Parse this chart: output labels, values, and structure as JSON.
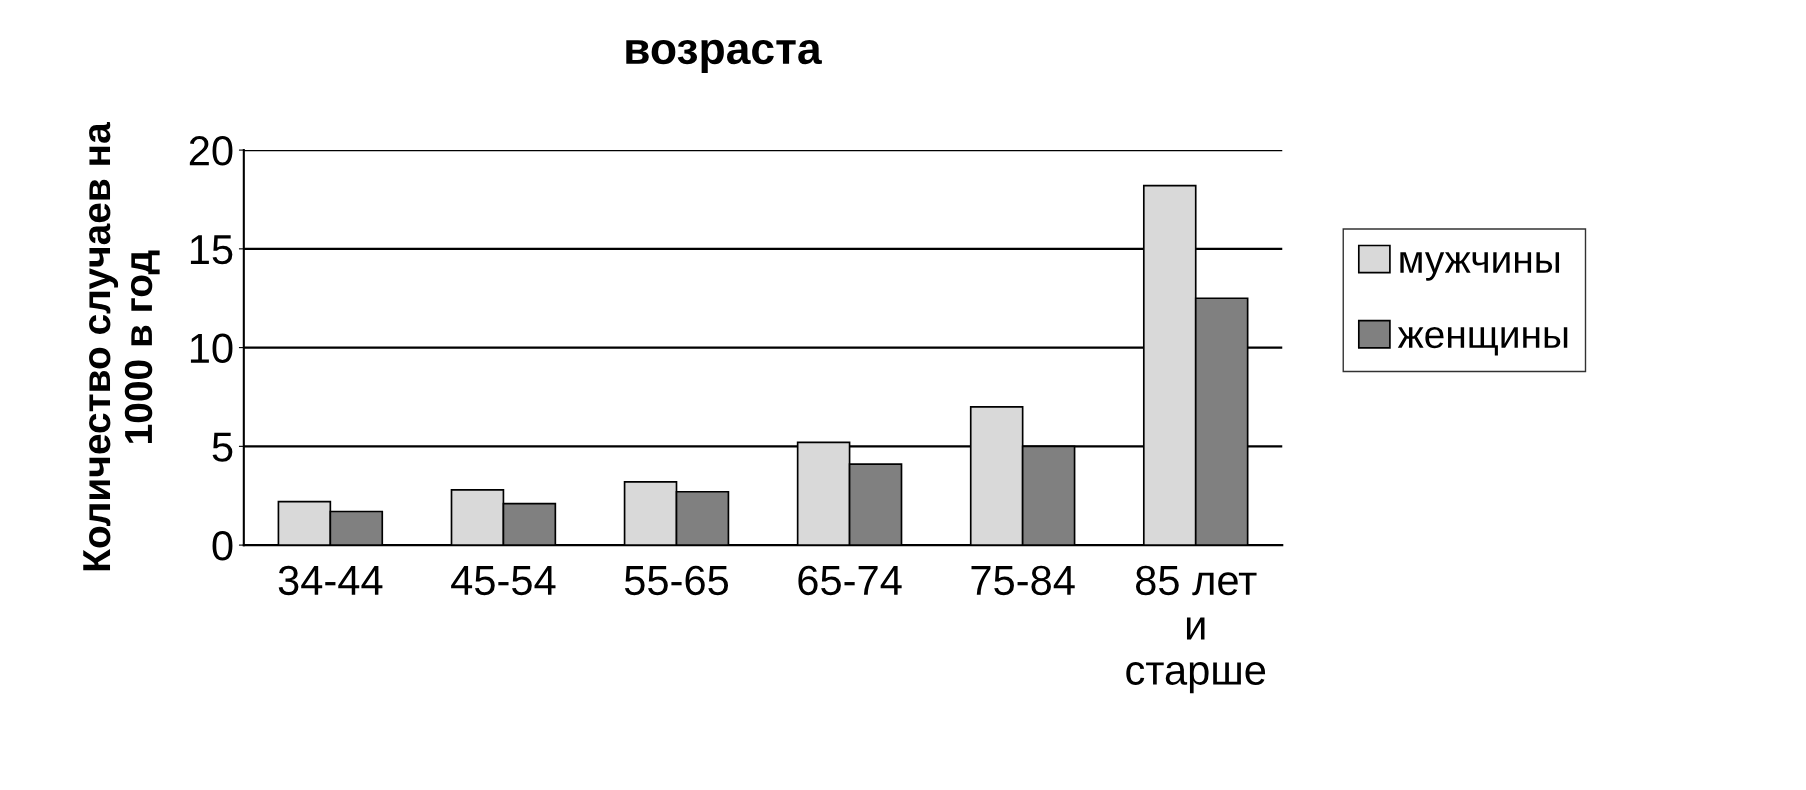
{
  "chart_data": {
    "type": "bar",
    "title": "возраста",
    "ylabel": "Количество случаев на\n1000 в год",
    "categories": [
      "34-44",
      "45-54",
      "55-65",
      "65-74",
      "75-84",
      "85 лет\nи\nстарше"
    ],
    "series": [
      {
        "name": "мужчины",
        "color": "#d9d9d9",
        "values": [
          2.2,
          2.8,
          3.2,
          5.2,
          7.0,
          18.2
        ]
      },
      {
        "name": "женщины",
        "color": "#808080",
        "values": [
          1.7,
          2.1,
          2.7,
          4.1,
          5.0,
          12.5
        ]
      }
    ],
    "ylim": [
      0,
      20
    ],
    "yticks": [
      0,
      5,
      10,
      15,
      20
    ],
    "grid": "y",
    "legend": "right"
  }
}
